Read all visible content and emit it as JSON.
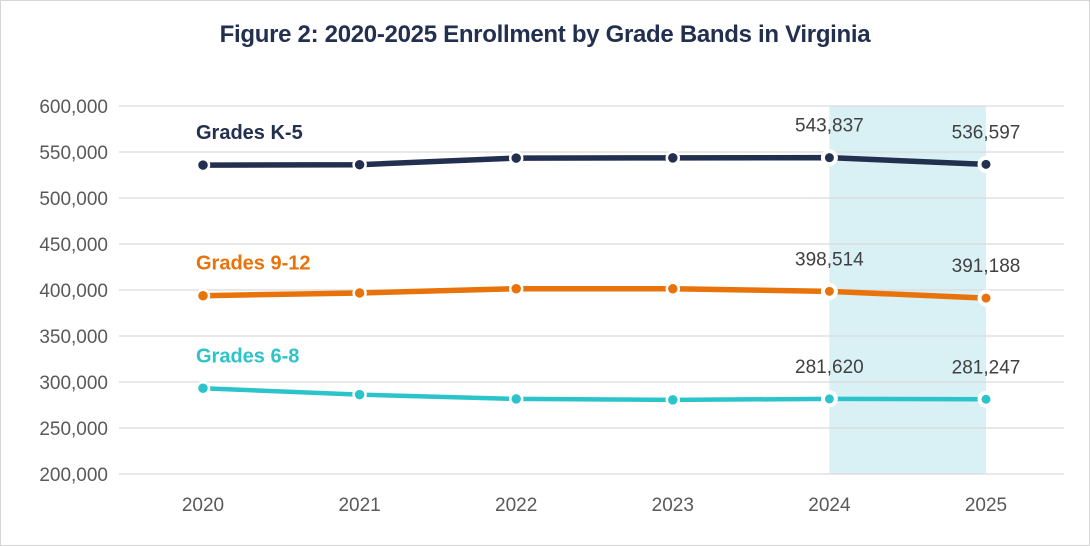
{
  "window": {
    "background": "#ffffff",
    "border_color": "#d6d6d6"
  },
  "chart_data": {
    "type": "line",
    "title": "Figure 2: 2020-2025 Enrollment by Grade Bands in Virginia",
    "title_color": "#222f4e",
    "x_labels": [
      "2020",
      "2021",
      "2022",
      "2023",
      "2024",
      "2025"
    ],
    "y_tick_labels": [
      "600,000",
      "550,000",
      "500,000",
      "450,000",
      "400,000",
      "350,000",
      "300,000",
      "250,000",
      "200,000"
    ],
    "ylim": [
      200000,
      600000
    ],
    "y_tick_step": 50000,
    "grid": true,
    "grid_color": "#d9d9d9",
    "axis_label_color": "#595959",
    "data_label_color": "#404040",
    "legend_position": "inline-left-above-line",
    "highlight": {
      "from": "2024",
      "to": "2025",
      "color": "#d9f1f4"
    },
    "series": [
      {
        "name": "Grades K-5",
        "color": "#222f4e",
        "values": [
          535800,
          536200,
          543400,
          543600,
          543837,
          536597
        ],
        "data_labels": {
          "2024": "543,837",
          "2025": "536,597"
        }
      },
      {
        "name": "Grades 9-12",
        "color": "#e8730a",
        "values": [
          393800,
          396800,
          401400,
          401300,
          398514,
          391188
        ],
        "data_labels": {
          "2024": "398,514",
          "2025": "391,188"
        }
      },
      {
        "name": "Grades 6-8",
        "color": "#2bc4cb",
        "values": [
          293200,
          286300,
          281600,
          280600,
          281620,
          281247
        ],
        "data_labels": {
          "2024": "281,620",
          "2025": "281,247"
        }
      }
    ]
  }
}
